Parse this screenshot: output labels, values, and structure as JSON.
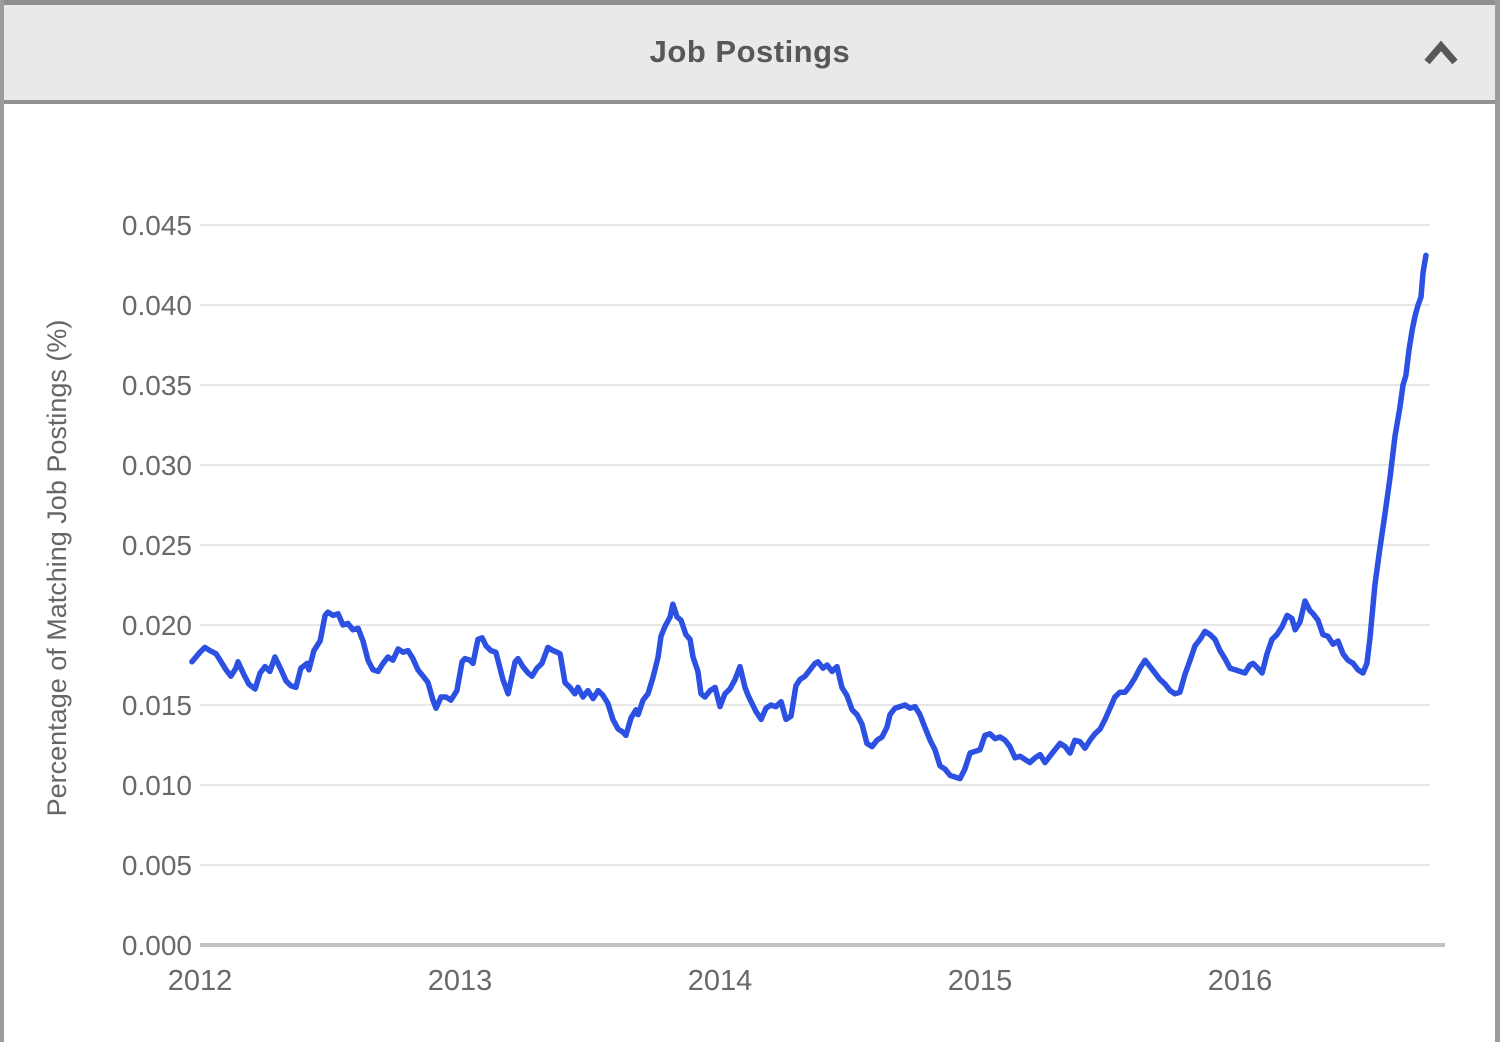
{
  "header": {
    "title": "Job Postings",
    "collapse_icon": "chevron-up"
  },
  "colors": {
    "line": "#2b50e2",
    "grid": "#e7e7e7",
    "axis_baseline": "#c1c1c1",
    "tick_text": "#696969",
    "axis_title_text": "#666666",
    "header_bg": "#e9e9e9",
    "border": "#919191",
    "plot_bg": "#ffffff",
    "title_text": "#58585a"
  },
  "chart_data": {
    "type": "line",
    "title": "Job Postings",
    "xlabel": "",
    "ylabel": "Percentage of Matching Job Postings (%)",
    "x_ticks": [
      2012,
      2013,
      2014,
      2015,
      2016
    ],
    "y_ticks": [
      "0.000",
      "0.005",
      "0.010",
      "0.015",
      "0.020",
      "0.025",
      "0.030",
      "0.035",
      "0.040",
      "0.045"
    ],
    "xlim": [
      2012,
      2016.73
    ],
    "ylim": [
      0,
      0.045
    ],
    "grid": "horizontal-only",
    "legend": "none",
    "series": [
      {
        "name": "Percentage of Matching Job Postings (%)",
        "color": "#2b50e2",
        "points": [
          [
            2011.969,
            0.0177
          ],
          [
            2012.0,
            0.0183
          ],
          [
            2012.019,
            0.0186
          ],
          [
            2012.038,
            0.0184
          ],
          [
            2012.062,
            0.0182
          ],
          [
            2012.081,
            0.0177
          ],
          [
            2012.1,
            0.0172
          ],
          [
            2012.119,
            0.0168
          ],
          [
            2012.138,
            0.0173
          ],
          [
            2012.146,
            0.0177
          ],
          [
            2012.169,
            0.0169
          ],
          [
            2012.188,
            0.0163
          ],
          [
            2012.212,
            0.016
          ],
          [
            2012.231,
            0.017
          ],
          [
            2012.25,
            0.0174
          ],
          [
            2012.269,
            0.0171
          ],
          [
            2012.288,
            0.018
          ],
          [
            2012.312,
            0.0172
          ],
          [
            2012.331,
            0.0165
          ],
          [
            2012.35,
            0.0162
          ],
          [
            2012.369,
            0.0161
          ],
          [
            2012.388,
            0.0173
          ],
          [
            2012.412,
            0.0176
          ],
          [
            2012.419,
            0.0172
          ],
          [
            2012.438,
            0.0184
          ],
          [
            2012.462,
            0.019
          ],
          [
            2012.481,
            0.0206
          ],
          [
            2012.492,
            0.0208
          ],
          [
            2012.512,
            0.0206
          ],
          [
            2012.531,
            0.0207
          ],
          [
            2012.55,
            0.02
          ],
          [
            2012.569,
            0.0201
          ],
          [
            2012.588,
            0.0197
          ],
          [
            2012.608,
            0.0198
          ],
          [
            2012.627,
            0.019
          ],
          [
            2012.646,
            0.0178
          ],
          [
            2012.665,
            0.0172
          ],
          [
            2012.685,
            0.0171
          ],
          [
            2012.704,
            0.0176
          ],
          [
            2012.723,
            0.018
          ],
          [
            2012.742,
            0.0178
          ],
          [
            2012.762,
            0.0185
          ],
          [
            2012.781,
            0.0183
          ],
          [
            2012.8,
            0.0184
          ],
          [
            2012.819,
            0.0179
          ],
          [
            2012.838,
            0.0172
          ],
          [
            2012.858,
            0.0168
          ],
          [
            2012.877,
            0.0164
          ],
          [
            2012.896,
            0.0153
          ],
          [
            2012.908,
            0.0148
          ],
          [
            2012.927,
            0.0155
          ],
          [
            2012.946,
            0.0155
          ],
          [
            2012.965,
            0.0153
          ],
          [
            2012.988,
            0.0159
          ],
          [
            2013.008,
            0.0177
          ],
          [
            2013.019,
            0.0179
          ],
          [
            2013.038,
            0.0178
          ],
          [
            2013.05,
            0.0176
          ],
          [
            2013.069,
            0.0191
          ],
          [
            2013.085,
            0.0192
          ],
          [
            2013.1,
            0.0187
          ],
          [
            2013.119,
            0.0184
          ],
          [
            2013.138,
            0.0183
          ],
          [
            2013.165,
            0.0166
          ],
          [
            2013.185,
            0.0157
          ],
          [
            2013.212,
            0.0177
          ],
          [
            2013.223,
            0.0179
          ],
          [
            2013.242,
            0.0174
          ],
          [
            2013.262,
            0.017
          ],
          [
            2013.277,
            0.0168
          ],
          [
            2013.296,
            0.0173
          ],
          [
            2013.315,
            0.0176
          ],
          [
            2013.338,
            0.0186
          ],
          [
            2013.358,
            0.0184
          ],
          [
            2013.373,
            0.0183
          ],
          [
            2013.385,
            0.0182
          ],
          [
            2013.404,
            0.0164
          ],
          [
            2013.423,
            0.0161
          ],
          [
            2013.442,
            0.0157
          ],
          [
            2013.454,
            0.0161
          ],
          [
            2013.473,
            0.0155
          ],
          [
            2013.492,
            0.0159
          ],
          [
            2013.512,
            0.0154
          ],
          [
            2013.531,
            0.0159
          ],
          [
            2013.55,
            0.0156
          ],
          [
            2013.569,
            0.0151
          ],
          [
            2013.588,
            0.0141
          ],
          [
            2013.608,
            0.0135
          ],
          [
            2013.627,
            0.0133
          ],
          [
            2013.638,
            0.0131
          ],
          [
            2013.658,
            0.0142
          ],
          [
            2013.677,
            0.0147
          ],
          [
            2013.685,
            0.0144
          ],
          [
            2013.704,
            0.0153
          ],
          [
            2013.723,
            0.0157
          ],
          [
            2013.742,
            0.0167
          ],
          [
            2013.762,
            0.018
          ],
          [
            2013.773,
            0.0193
          ],
          [
            2013.788,
            0.0199
          ],
          [
            2013.808,
            0.0205
          ],
          [
            2013.819,
            0.0213
          ],
          [
            2013.835,
            0.0205
          ],
          [
            2013.85,
            0.0203
          ],
          [
            2013.869,
            0.0194
          ],
          [
            2013.885,
            0.0191
          ],
          [
            2013.896,
            0.018
          ],
          [
            2013.915,
            0.0171
          ],
          [
            2013.927,
            0.0157
          ],
          [
            2013.942,
            0.0155
          ],
          [
            2013.962,
            0.0159
          ],
          [
            2013.981,
            0.0161
          ],
          [
            2014.0,
            0.0149
          ],
          [
            2014.019,
            0.0157
          ],
          [
            2014.038,
            0.016
          ],
          [
            2014.058,
            0.0166
          ],
          [
            2014.077,
            0.0174
          ],
          [
            2014.096,
            0.0161
          ],
          [
            2014.108,
            0.0156
          ],
          [
            2014.138,
            0.0146
          ],
          [
            2014.158,
            0.0141
          ],
          [
            2014.177,
            0.0148
          ],
          [
            2014.196,
            0.015
          ],
          [
            2014.215,
            0.0149
          ],
          [
            2014.235,
            0.0152
          ],
          [
            2014.254,
            0.0141
          ],
          [
            2014.273,
            0.0143
          ],
          [
            2014.292,
            0.0162
          ],
          [
            2014.308,
            0.0166
          ],
          [
            2014.327,
            0.0168
          ],
          [
            2014.346,
            0.0172
          ],
          [
            2014.365,
            0.0176
          ],
          [
            2014.377,
            0.0177
          ],
          [
            2014.396,
            0.0173
          ],
          [
            2014.412,
            0.0175
          ],
          [
            2014.431,
            0.0171
          ],
          [
            2014.45,
            0.0174
          ],
          [
            2014.469,
            0.0161
          ],
          [
            2014.488,
            0.0156
          ],
          [
            2014.508,
            0.0147
          ],
          [
            2014.527,
            0.0144
          ],
          [
            2014.546,
            0.0138
          ],
          [
            2014.565,
            0.0126
          ],
          [
            2014.585,
            0.0124
          ],
          [
            2014.604,
            0.0128
          ],
          [
            2014.623,
            0.013
          ],
          [
            2014.642,
            0.0136
          ],
          [
            2014.654,
            0.0144
          ],
          [
            2014.673,
            0.0148
          ],
          [
            2014.692,
            0.0149
          ],
          [
            2014.712,
            0.015
          ],
          [
            2014.731,
            0.0148
          ],
          [
            2014.75,
            0.0149
          ],
          [
            2014.769,
            0.0144
          ],
          [
            2014.788,
            0.0136
          ],
          [
            2014.808,
            0.0128
          ],
          [
            2014.827,
            0.0122
          ],
          [
            2014.846,
            0.0112
          ],
          [
            2014.865,
            0.011
          ],
          [
            2014.885,
            0.0106
          ],
          [
            2014.904,
            0.0105
          ],
          [
            2014.923,
            0.0104
          ],
          [
            2014.942,
            0.011
          ],
          [
            2014.962,
            0.012
          ],
          [
            2014.981,
            0.0121
          ],
          [
            2015.0,
            0.0122
          ],
          [
            2015.019,
            0.0131
          ],
          [
            2015.038,
            0.0132
          ],
          [
            2015.058,
            0.0129
          ],
          [
            2015.077,
            0.013
          ],
          [
            2015.096,
            0.0128
          ],
          [
            2015.115,
            0.0124
          ],
          [
            2015.135,
            0.0117
          ],
          [
            2015.154,
            0.0118
          ],
          [
            2015.173,
            0.0116
          ],
          [
            2015.192,
            0.0114
          ],
          [
            2015.212,
            0.0117
          ],
          [
            2015.231,
            0.0119
          ],
          [
            2015.25,
            0.0114
          ],
          [
            2015.269,
            0.0118
          ],
          [
            2015.288,
            0.0122
          ],
          [
            2015.308,
            0.0126
          ],
          [
            2015.327,
            0.0124
          ],
          [
            2015.346,
            0.012
          ],
          [
            2015.365,
            0.0128
          ],
          [
            2015.385,
            0.0127
          ],
          [
            2015.404,
            0.0123
          ],
          [
            2015.423,
            0.0128
          ],
          [
            2015.442,
            0.0132
          ],
          [
            2015.462,
            0.0135
          ],
          [
            2015.481,
            0.0141
          ],
          [
            2015.5,
            0.0148
          ],
          [
            2015.519,
            0.0155
          ],
          [
            2015.538,
            0.0158
          ],
          [
            2015.558,
            0.0158
          ],
          [
            2015.577,
            0.0162
          ],
          [
            2015.596,
            0.0167
          ],
          [
            2015.615,
            0.0173
          ],
          [
            2015.635,
            0.0178
          ],
          [
            2015.654,
            0.0174
          ],
          [
            2015.673,
            0.017
          ],
          [
            2015.692,
            0.0166
          ],
          [
            2015.712,
            0.0163
          ],
          [
            2015.731,
            0.0159
          ],
          [
            2015.75,
            0.0157
          ],
          [
            2015.769,
            0.0158
          ],
          [
            2015.788,
            0.0169
          ],
          [
            2015.808,
            0.0178
          ],
          [
            2015.827,
            0.0187
          ],
          [
            2015.846,
            0.0191
          ],
          [
            2015.865,
            0.0196
          ],
          [
            2015.885,
            0.0194
          ],
          [
            2015.904,
            0.0191
          ],
          [
            2015.923,
            0.0184
          ],
          [
            2015.942,
            0.0179
          ],
          [
            2015.962,
            0.0173
          ],
          [
            2015.981,
            0.0172
          ],
          [
            2016.0,
            0.0171
          ],
          [
            2016.019,
            0.017
          ],
          [
            2016.038,
            0.0175
          ],
          [
            2016.05,
            0.0176
          ],
          [
            2016.069,
            0.0173
          ],
          [
            2016.085,
            0.017
          ],
          [
            2016.104,
            0.0182
          ],
          [
            2016.123,
            0.0191
          ],
          [
            2016.142,
            0.0194
          ],
          [
            2016.162,
            0.0199
          ],
          [
            2016.181,
            0.0206
          ],
          [
            2016.2,
            0.0204
          ],
          [
            2016.212,
            0.0197
          ],
          [
            2016.231,
            0.0202
          ],
          [
            2016.25,
            0.0215
          ],
          [
            2016.269,
            0.0209
          ],
          [
            2016.281,
            0.0207
          ],
          [
            2016.3,
            0.0203
          ],
          [
            2016.319,
            0.0194
          ],
          [
            2016.338,
            0.0193
          ],
          [
            2016.358,
            0.0188
          ],
          [
            2016.377,
            0.019
          ],
          [
            2016.396,
            0.0182
          ],
          [
            2016.415,
            0.0178
          ],
          [
            2016.435,
            0.0176
          ],
          [
            2016.454,
            0.0172
          ],
          [
            2016.473,
            0.017
          ],
          [
            2016.488,
            0.0176
          ],
          [
            2016.5,
            0.0192
          ],
          [
            2016.519,
            0.0225
          ],
          [
            2016.538,
            0.0248
          ],
          [
            2016.558,
            0.027
          ],
          [
            2016.577,
            0.0292
          ],
          [
            2016.596,
            0.0318
          ],
          [
            2016.615,
            0.0336
          ],
          [
            2016.627,
            0.035
          ],
          [
            2016.638,
            0.0356
          ],
          [
            2016.65,
            0.0372
          ],
          [
            2016.662,
            0.0384
          ],
          [
            2016.673,
            0.0393
          ],
          [
            2016.685,
            0.04
          ],
          [
            2016.696,
            0.0405
          ],
          [
            2016.704,
            0.042
          ],
          [
            2016.715,
            0.0431
          ]
        ]
      }
    ]
  }
}
